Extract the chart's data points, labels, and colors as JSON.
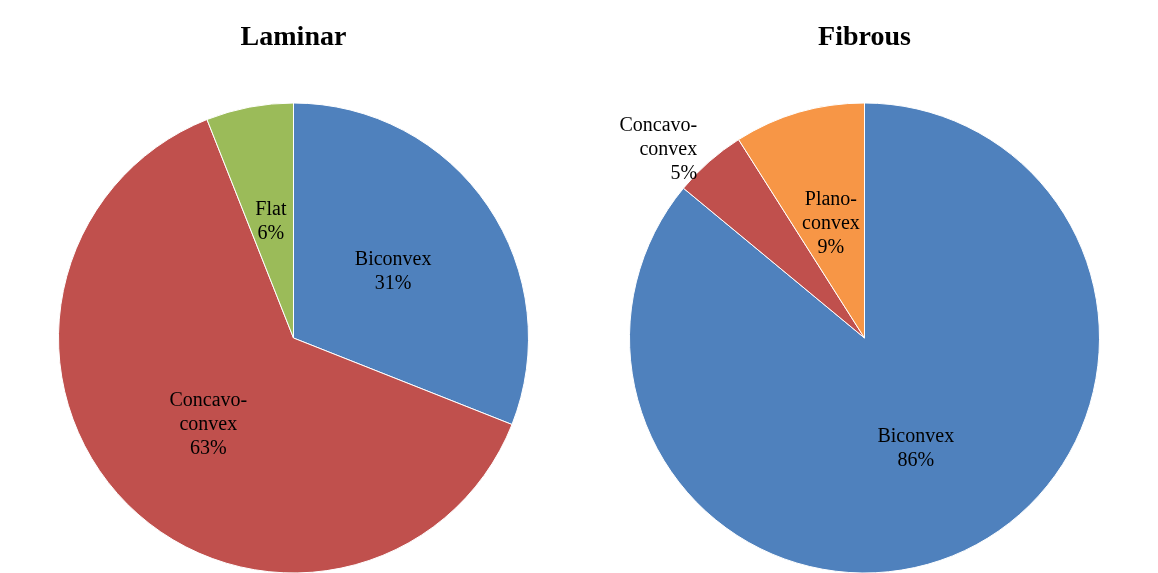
{
  "chart_data": [
    {
      "type": "pie",
      "title": "Laminar",
      "categories": [
        "Biconvex",
        "Concavo-convex",
        "Flat"
      ],
      "values": [
        31,
        63,
        6
      ],
      "colors": [
        "#4f81bd",
        "#c0504d",
        "#9bbb59"
      ],
      "value_labels": [
        "31%",
        "63%",
        "6%"
      ],
      "legend": false
    },
    {
      "type": "pie",
      "title": "Fibrous",
      "categories": [
        "Biconvex",
        "Concavo-convex",
        "Plano-convex"
      ],
      "values": [
        86,
        5,
        9
      ],
      "colors": [
        "#4f81bd",
        "#c0504d",
        "#f79646"
      ],
      "value_labels": [
        "86%",
        "5%",
        "9%"
      ],
      "legend": false
    }
  ]
}
